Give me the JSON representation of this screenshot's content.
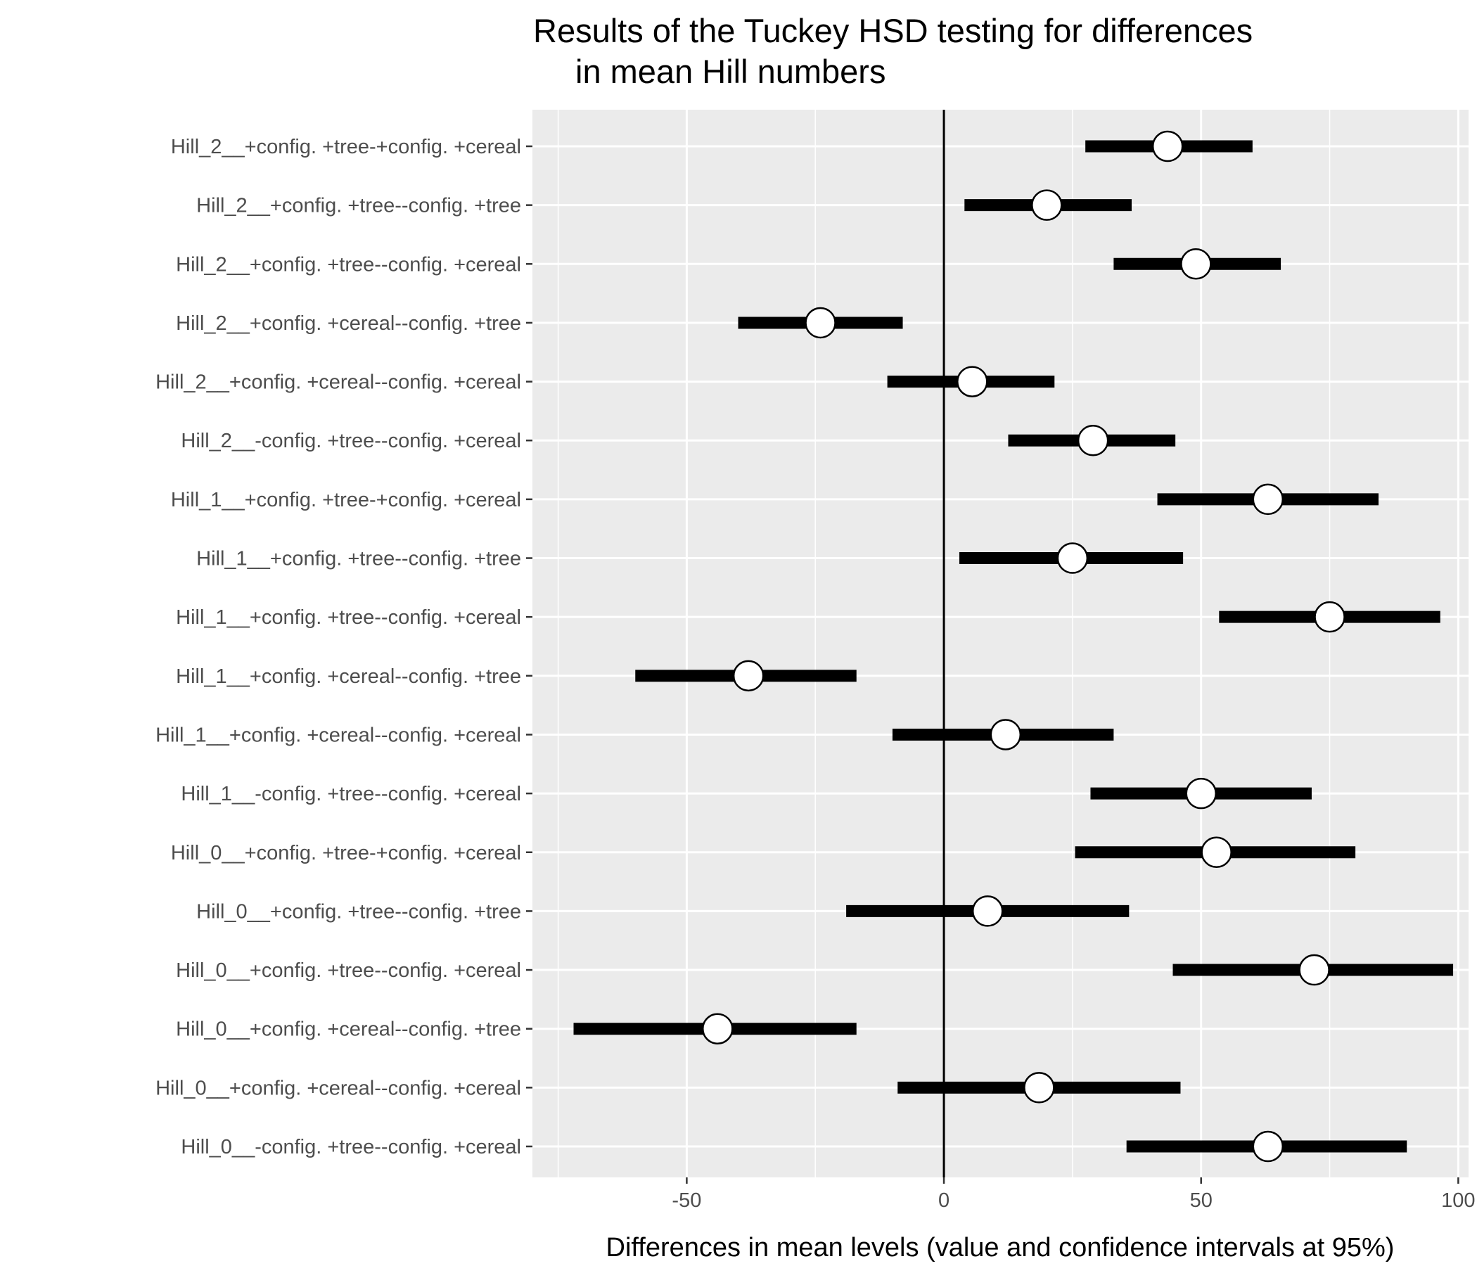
{
  "chart_data": {
    "type": "errorbar",
    "orientation": "horizontal",
    "title": [
      "Results of the Tuckey HSD testing for differences",
      "in mean Hill numbers"
    ],
    "xlabel": "Differences in mean levels (value and confidence intervals at 95%)",
    "ylabel": "",
    "xlim": [
      -80,
      102
    ],
    "xticks": [
      -50,
      0,
      50,
      100
    ],
    "xtick_labels": [
      "-50",
      "0",
      "50",
      "100"
    ],
    "reference_line": 0,
    "grid": true,
    "categories": [
      "Hill_2__+config. +tree-+config. +cereal",
      "Hill_2__+config. +tree--config. +tree",
      "Hill_2__+config. +tree--config. +cereal",
      "Hill_2__+config. +cereal--config. +tree",
      "Hill_2__+config. +cereal--config. +cereal",
      "Hill_2__-config. +tree--config. +cereal",
      "Hill_1__+config. +tree-+config. +cereal",
      "Hill_1__+config. +tree--config. +tree",
      "Hill_1__+config. +tree--config. +cereal",
      "Hill_1__+config. +cereal--config. +tree",
      "Hill_1__+config. +cereal--config. +cereal",
      "Hill_1__-config. +tree--config. +cereal",
      "Hill_0__+config. +tree-+config. +cereal",
      "Hill_0__+config. +tree--config. +tree",
      "Hill_0__+config. +tree--config. +cereal",
      "Hill_0__+config. +cereal--config. +tree",
      "Hill_0__+config. +cereal--config. +cereal",
      "Hill_0__-config. +tree--config. +cereal"
    ],
    "values": [
      43.5,
      20,
      49,
      -24,
      5.5,
      29,
      63,
      25,
      75,
      -38,
      12,
      50,
      53,
      8.5,
      72,
      -44,
      18.5,
      63
    ],
    "lower": [
      27.5,
      4,
      33,
      -40,
      -11,
      12.5,
      41.5,
      3,
      53.5,
      -60,
      -10,
      28.5,
      25.5,
      -19,
      44.5,
      -72,
      -9,
      35.5
    ],
    "upper": [
      60,
      36.5,
      65.5,
      -8,
      21.5,
      45,
      84.5,
      46.5,
      96.5,
      -17,
      33,
      71.5,
      80,
      36,
      99,
      -17,
      46,
      90
    ],
    "colors": {
      "panel": "#ebebeb",
      "grid_major": "#ffffff",
      "interval": "#000000",
      "point_fill": "#ffffff",
      "point_stroke": "#000000",
      "reference_line": "#000000"
    }
  }
}
